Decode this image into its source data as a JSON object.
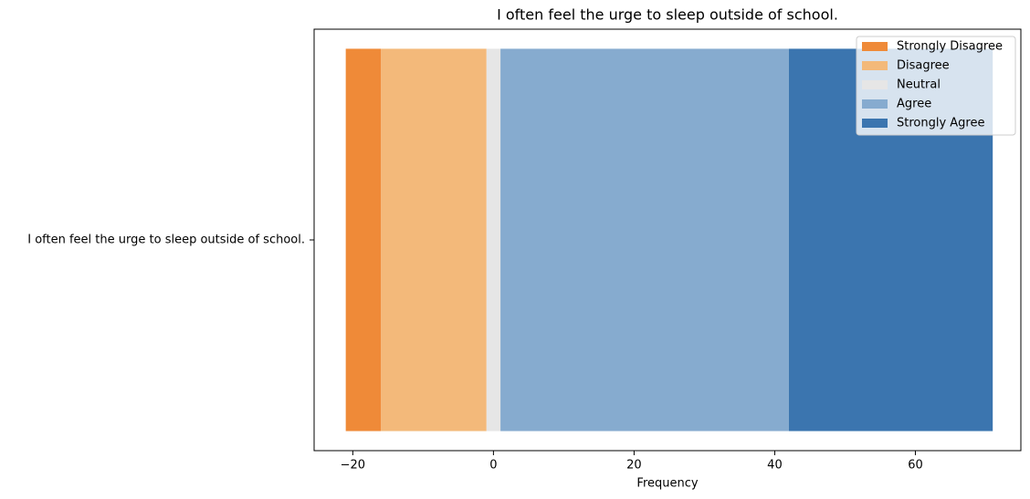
{
  "chart_data": {
    "type": "diverging_bar",
    "title": "I often feel the urge to sleep outside of school.",
    "xlabel": "Frequency",
    "categories": [
      "I often feel the urge to sleep outside of school."
    ],
    "series": [
      {
        "name": "Strongly Disagree",
        "color": "#ef8a38",
        "values": [
          5
        ]
      },
      {
        "name": "Disagree",
        "color": "#f3b97a",
        "values": [
          15
        ]
      },
      {
        "name": "Neutral",
        "color": "#e6e6e6",
        "values": [
          2
        ]
      },
      {
        "name": "Agree",
        "color": "#86abcf",
        "values": [
          41
        ]
      },
      {
        "name": "Strongly Agree",
        "color": "#3b75af",
        "values": [
          29
        ]
      }
    ],
    "xlim": [
      -25.5,
      75
    ],
    "xticks": [
      {
        "value": -20,
        "label": "−20"
      },
      0,
      20,
      40,
      60
    ],
    "legend": "upper right"
  }
}
